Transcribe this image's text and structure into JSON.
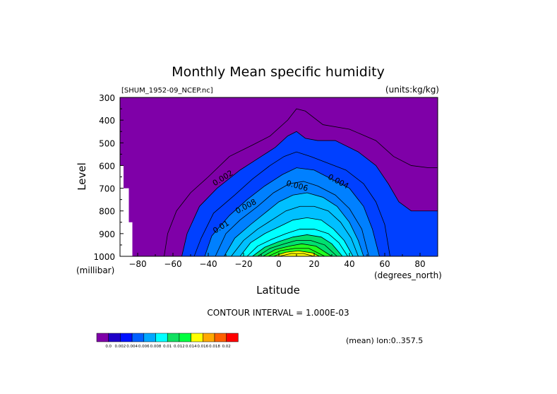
{
  "chart_data": {
    "type": "heatmap",
    "title": "Monthly Mean specific humidity",
    "file_label": "[SHUM_1952-09_NCEP.nc]",
    "units_label": "(units:kg/kg)",
    "xlabel": "Latitude",
    "x_units_label": "(degrees_north)",
    "ylabel": "Level",
    "y_units_label": "(millibar)",
    "xlim": [
      -90,
      90
    ],
    "ylim": [
      1000,
      300
    ],
    "x_ticks": [
      -80,
      -60,
      -40,
      -20,
      0,
      20,
      40,
      60,
      80
    ],
    "y_ticks": [
      300,
      400,
      500,
      600,
      700,
      800,
      900,
      1000
    ],
    "contour_interval_text": "CONTOUR INTERVAL = 1.000E-03",
    "mean_label": "(mean) lon:0..357.5",
    "contour_labels": [
      "0.002",
      "0.004",
      "0.006",
      "0.008",
      "0.01"
    ],
    "colorbar": {
      "colors": [
        "#7f00a8",
        "#1f00c8",
        "#0010ff",
        "#0060ff",
        "#00a8ff",
        "#00ffff",
        "#10e060",
        "#00ff40",
        "#ffff00",
        "#ffa800",
        "#ff6000",
        "#ff0000"
      ],
      "labels": [
        "0.0",
        "0.002",
        "0.004",
        "0.006",
        "0.008",
        "0.01",
        "0.012",
        "0.014",
        "0.016",
        "0.018",
        "0.02"
      ]
    },
    "levels": [
      0.0,
      0.002,
      0.004,
      0.006,
      0.008,
      0.01,
      0.012,
      0.014,
      0.016,
      0.018,
      0.02
    ],
    "fill_colors": [
      "#7f00a8",
      "#1f00ff",
      "#0040ff",
      "#0080ff",
      "#00c0ff",
      "#00ffff",
      "#00e070",
      "#20ff20",
      "#ffff00",
      "#ffb000",
      "#ff6000",
      "#ff0000"
    ],
    "contours": [
      {
        "value": 0.001,
        "points": [
          [
            -65,
            1000
          ],
          [
            -63,
            900
          ],
          [
            -58,
            800
          ],
          [
            -50,
            720
          ],
          [
            -40,
            650
          ],
          [
            -28,
            560
          ],
          [
            -15,
            510
          ],
          [
            -5,
            470
          ],
          [
            5,
            400
          ],
          [
            10,
            350
          ],
          [
            15,
            360
          ],
          [
            25,
            420
          ],
          [
            40,
            440
          ],
          [
            55,
            490
          ],
          [
            65,
            560
          ],
          [
            75,
            600
          ],
          [
            85,
            610
          ],
          [
            90,
            610
          ]
        ]
      },
      {
        "value": 0.002,
        "points": [
          [
            -55,
            1000
          ],
          [
            -52,
            900
          ],
          [
            -45,
            780
          ],
          [
            -35,
            700
          ],
          [
            -22,
            620
          ],
          [
            -10,
            560
          ],
          [
            -2,
            520
          ],
          [
            5,
            470
          ],
          [
            10,
            450
          ],
          [
            15,
            480
          ],
          [
            22,
            490
          ],
          [
            32,
            490
          ],
          [
            45,
            540
          ],
          [
            55,
            600
          ],
          [
            62,
            680
          ],
          [
            68,
            760
          ],
          [
            75,
            800
          ],
          [
            90,
            800
          ]
        ]
      },
      {
        "value": 0.003,
        "points": [
          [
            -48,
            1000
          ],
          [
            -44,
            920
          ],
          [
            -37,
            810
          ],
          [
            -25,
            730
          ],
          [
            -15,
            660
          ],
          [
            -5,
            600
          ],
          [
            3,
            560
          ],
          [
            10,
            540
          ],
          [
            18,
            560
          ],
          [
            28,
            590
          ],
          [
            38,
            620
          ],
          [
            48,
            680
          ],
          [
            55,
            760
          ],
          [
            60,
            860
          ],
          [
            63,
            1000
          ]
        ]
      },
      {
        "value": 0.004,
        "points": [
          [
            -42,
            1000
          ],
          [
            -38,
            910
          ],
          [
            -28,
            820
          ],
          [
            -18,
            750
          ],
          [
            -8,
            690
          ],
          [
            2,
            640
          ],
          [
            10,
            610
          ],
          [
            20,
            620
          ],
          [
            30,
            660
          ],
          [
            40,
            700
          ],
          [
            48,
            780
          ],
          [
            53,
            880
          ],
          [
            57,
            1000
          ]
        ]
      },
      {
        "value": 0.005,
        "points": [
          [
            -36,
            1000
          ],
          [
            -30,
            900
          ],
          [
            -22,
            840
          ],
          [
            -12,
            780
          ],
          [
            -3,
            720
          ],
          [
            6,
            680
          ],
          [
            14,
            670
          ],
          [
            22,
            690
          ],
          [
            32,
            730
          ],
          [
            40,
            790
          ],
          [
            47,
            880
          ],
          [
            51,
            1000
          ]
        ]
      },
      {
        "value": 0.006,
        "points": [
          [
            -31,
            1000
          ],
          [
            -25,
            920
          ],
          [
            -16,
            860
          ],
          [
            -8,
            810
          ],
          [
            0,
            760
          ],
          [
            8,
            730
          ],
          [
            16,
            720
          ],
          [
            25,
            740
          ],
          [
            33,
            780
          ],
          [
            40,
            850
          ],
          [
            45,
            930
          ],
          [
            48,
            1000
          ]
        ]
      },
      {
        "value": 0.007,
        "points": [
          [
            -27,
            1000
          ],
          [
            -20,
            930
          ],
          [
            -12,
            880
          ],
          [
            -4,
            840
          ],
          [
            4,
            800
          ],
          [
            12,
            780
          ],
          [
            20,
            780
          ],
          [
            28,
            800
          ],
          [
            35,
            850
          ],
          [
            41,
            920
          ],
          [
            45,
            1000
          ]
        ]
      },
      {
        "value": 0.008,
        "points": [
          [
            -22,
            1000
          ],
          [
            -16,
            940
          ],
          [
            -8,
            900
          ],
          [
            0,
            870
          ],
          [
            8,
            840
          ],
          [
            16,
            830
          ],
          [
            24,
            840
          ],
          [
            31,
            880
          ],
          [
            37,
            930
          ],
          [
            42,
            1000
          ]
        ]
      },
      {
        "value": 0.009,
        "points": [
          [
            -18,
            1000
          ],
          [
            -12,
            955
          ],
          [
            -4,
            925
          ],
          [
            4,
            900
          ],
          [
            12,
            880
          ],
          [
            20,
            880
          ],
          [
            28,
            900
          ],
          [
            34,
            940
          ],
          [
            39,
            1000
          ]
        ]
      },
      {
        "value": 0.01,
        "points": [
          [
            -15,
            1000
          ],
          [
            -8,
            960
          ],
          [
            0,
            935
          ],
          [
            8,
            915
          ],
          [
            16,
            905
          ],
          [
            24,
            915
          ],
          [
            30,
            945
          ],
          [
            36,
            1000
          ]
        ]
      },
      {
        "value": 0.011,
        "points": [
          [
            -12,
            1000
          ],
          [
            -5,
            965
          ],
          [
            3,
            945
          ],
          [
            10,
            930
          ],
          [
            18,
            930
          ],
          [
            26,
            950
          ],
          [
            33,
            1000
          ]
        ]
      },
      {
        "value": 0.012,
        "points": [
          [
            -9,
            1000
          ],
          [
            -2,
            970
          ],
          [
            6,
            955
          ],
          [
            13,
            945
          ],
          [
            21,
            955
          ],
          [
            30,
            1000
          ]
        ]
      },
      {
        "value": 0.013,
        "points": [
          [
            -6,
            1000
          ],
          [
            1,
            975
          ],
          [
            9,
            965
          ],
          [
            17,
            965
          ],
          [
            26,
            1000
          ]
        ]
      },
      {
        "value": 0.014,
        "points": [
          [
            -3,
            1000
          ],
          [
            4,
            982
          ],
          [
            11,
            976
          ],
          [
            19,
            985
          ],
          [
            23,
            1000
          ]
        ]
      },
      {
        "value": 0.015,
        "points": [
          [
            0,
            1000
          ],
          [
            7,
            988
          ],
          [
            14,
            988
          ],
          [
            20,
            1000
          ]
        ]
      }
    ],
    "missing_region": {
      "lat_range": [
        -90,
        -83
      ],
      "top_pressures": [
        [
          -90,
          600
        ],
        [
          -88,
          600
        ],
        [
          -88,
          700
        ],
        [
          -85,
          700
        ],
        [
          -85,
          850
        ],
        [
          -83,
          850
        ],
        [
          -83,
          1000
        ]
      ]
    }
  }
}
